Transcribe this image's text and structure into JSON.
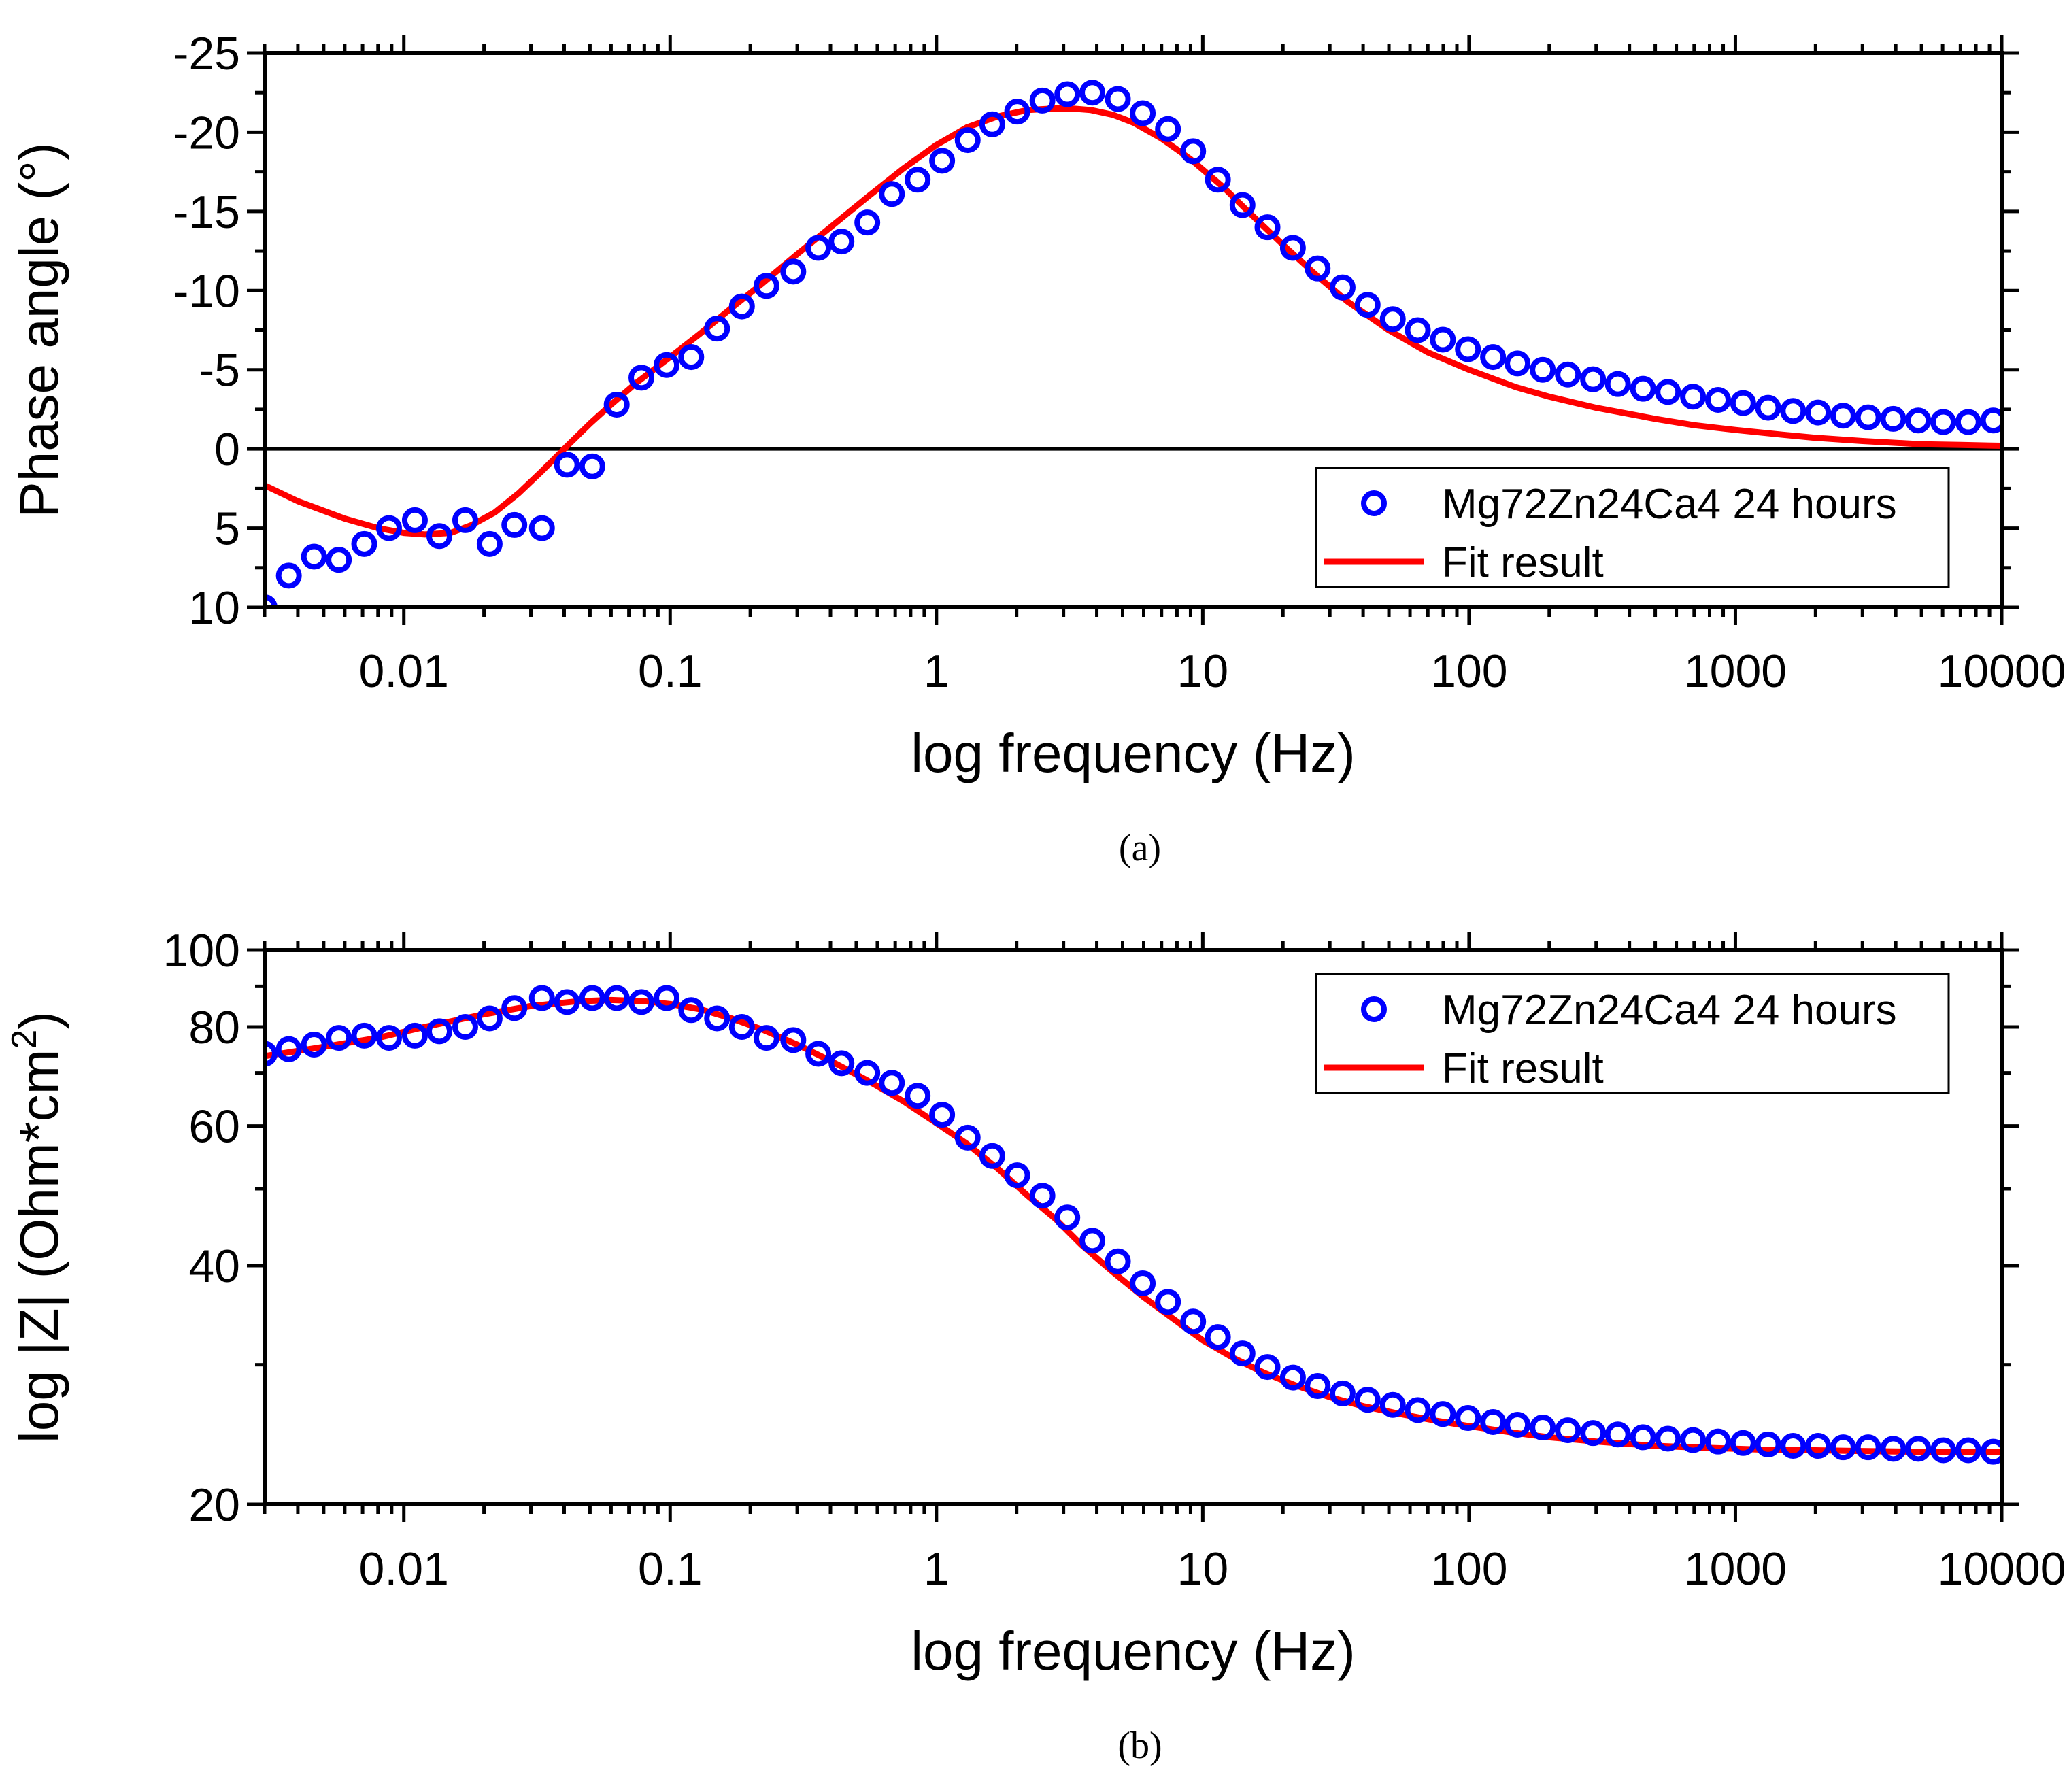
{
  "colors": {
    "points": "#0000ff",
    "fit": "#ff0000",
    "axis": "#000000"
  },
  "chart_data": [
    {
      "type": "scatter",
      "caption": "(a)",
      "xlabel": "log frequency (Hz)",
      "ylabel": "Phase angle (°)",
      "xscale": "log",
      "xlim": [
        0.003,
        10000
      ],
      "ylim": [
        10,
        -25
      ],
      "y_inverted": true,
      "zero_line": true,
      "xticks": [
        "0.01",
        "0.1",
        "1",
        "10",
        "100",
        "1000",
        "10000"
      ],
      "xtick_values": [
        0.01,
        0.1,
        1,
        10,
        100,
        1000,
        10000
      ],
      "yticks": [
        "-25",
        "-20",
        "-15",
        "-10",
        "-5",
        "0",
        "5",
        "10"
      ],
      "ytick_values": [
        -25,
        -20,
        -15,
        -10,
        -5,
        0,
        5,
        10
      ],
      "legend_position": "bottom-right",
      "series": [
        {
          "name": "Mg72Zn24Ca4 24 hours",
          "marker": "circle-open",
          "color": "#0000ff",
          "x": [
            0.003,
            0.0037,
            0.0046,
            0.0057,
            0.0071,
            0.0088,
            0.011,
            0.0136,
            0.017,
            0.021,
            0.026,
            0.033,
            0.041,
            0.051,
            0.063,
            0.078,
            0.097,
            0.12,
            0.15,
            0.186,
            0.23,
            0.29,
            0.36,
            0.44,
            0.55,
            0.68,
            0.85,
            1.05,
            1.31,
            1.62,
            2.01,
            2.5,
            3.1,
            3.85,
            4.8,
            5.95,
            7.4,
            9.2,
            11.4,
            14.1,
            17.5,
            21.8,
            27,
            33.5,
            41.6,
            51.7,
            64.2,
            79.7,
            99,
            123,
            152,
            189,
            235,
            292,
            362,
            450,
            558,
            693,
            861,
            1069,
            1327,
            1647,
            2045,
            2539,
            3152,
            3914,
            4859,
            6033,
            7490,
            9300
          ],
          "y": [
            10,
            8,
            6.8,
            7,
            6,
            5,
            4.5,
            5.5,
            4.5,
            6,
            4.8,
            5,
            1,
            1.1,
            -2.8,
            -4.5,
            -5.3,
            -5.8,
            -7.6,
            -9,
            -10.3,
            -11.2,
            -12.7,
            -13.1,
            -14.3,
            -16.1,
            -17,
            -18.2,
            -19.5,
            -20.5,
            -21.3,
            -22,
            -22.4,
            -22.5,
            -22.1,
            -21.2,
            -20.2,
            -18.8,
            -17,
            -15.4,
            -14,
            -12.7,
            -11.4,
            -10.2,
            -9.1,
            -8.2,
            -7.5,
            -6.9,
            -6.3,
            -5.8,
            -5.4,
            -5,
            -4.7,
            -4.4,
            -4.1,
            -3.8,
            -3.6,
            -3.3,
            -3.1,
            -2.9,
            -2.6,
            -2.4,
            -2.3,
            -2.1,
            -2,
            -1.9,
            -1.8,
            -1.7,
            -1.7,
            -1.8
          ]
        },
        {
          "name": "Fit result",
          "marker": "line",
          "color": "#ff0000",
          "x": [
            0.003,
            0.004,
            0.006,
            0.008,
            0.01,
            0.012,
            0.015,
            0.018,
            0.022,
            0.027,
            0.033,
            0.04,
            0.05,
            0.06,
            0.075,
            0.1,
            0.13,
            0.17,
            0.22,
            0.3,
            0.4,
            0.55,
            0.75,
            1,
            1.3,
            1.7,
            2.2,
            2.8,
            3.2,
            3.8,
            4.6,
            5.5,
            7,
            9,
            12,
            15,
            20,
            27,
            35,
            50,
            70,
            100,
            150,
            200,
            300,
            500,
            700,
            1000,
            1500,
            2000,
            3000,
            5000,
            7000,
            10000
          ],
          "y": [
            2.3,
            3.3,
            4.4,
            5.0,
            5.3,
            5.4,
            5.3,
            4.8,
            4.0,
            2.8,
            1.4,
            0,
            -1.6,
            -2.8,
            -4.2,
            -5.8,
            -7.3,
            -8.9,
            -10.4,
            -12.3,
            -14.0,
            -15.9,
            -17.7,
            -19.2,
            -20.3,
            -21.0,
            -21.4,
            -21.5,
            -21.5,
            -21.4,
            -21.1,
            -20.6,
            -19.6,
            -18.3,
            -16.5,
            -14.9,
            -12.9,
            -10.9,
            -9.3,
            -7.5,
            -6.1,
            -5.0,
            -3.9,
            -3.3,
            -2.6,
            -1.9,
            -1.5,
            -1.2,
            -0.9,
            -0.7,
            -0.5,
            -0.3,
            -0.25,
            -0.2
          ]
        }
      ]
    },
    {
      "type": "scatter",
      "caption": "(b)",
      "xlabel": "log frequency (Hz)",
      "ylabel": "log |Z| (Ohm*cm",
      "ylabel_sup": "2",
      "ylabel_close": ")",
      "xscale": "log",
      "yscale": "log",
      "xlim": [
        0.003,
        10000
      ],
      "ylim": [
        20,
        100
      ],
      "xticks": [
        "0.01",
        "0.1",
        "1",
        "10",
        "100",
        "1000",
        "10000"
      ],
      "xtick_values": [
        0.01,
        0.1,
        1,
        10,
        100,
        1000,
        10000
      ],
      "yticks": [
        "20",
        "40",
        "60",
        "80",
        "100"
      ],
      "ytick_values": [
        20,
        40,
        60,
        80,
        100
      ],
      "legend_position": "top-right",
      "series": [
        {
          "name": "Mg72Zn24Ca4 24 hours",
          "marker": "circle-open",
          "color": "#0000ff",
          "x": [
            0.003,
            0.0037,
            0.0046,
            0.0057,
            0.0071,
            0.0088,
            0.011,
            0.0136,
            0.017,
            0.021,
            0.026,
            0.033,
            0.041,
            0.051,
            0.063,
            0.078,
            0.097,
            0.12,
            0.15,
            0.186,
            0.23,
            0.29,
            0.36,
            0.44,
            0.55,
            0.68,
            0.85,
            1.05,
            1.31,
            1.62,
            2.01,
            2.5,
            3.1,
            3.85,
            4.8,
            5.95,
            7.4,
            9.2,
            11.4,
            14.1,
            17.5,
            21.8,
            27,
            33.5,
            41.6,
            51.7,
            64.2,
            79.7,
            99,
            123,
            152,
            189,
            235,
            292,
            362,
            450,
            558,
            693,
            861,
            1069,
            1327,
            1647,
            2045,
            2539,
            3152,
            3914,
            4859,
            6033,
            7490,
            9300
          ],
          "y": [
            74,
            75,
            76,
            77.5,
            78,
            77.5,
            78,
            79,
            80,
            82,
            84.5,
            87,
            86,
            87,
            87,
            86,
            87,
            84,
            82,
            80,
            77.5,
            77,
            74,
            72,
            70,
            68,
            65.5,
            62,
            58,
            55,
            52,
            49,
            46,
            43,
            40.5,
            38,
            36,
            34,
            32.5,
            31,
            29.8,
            28.9,
            28.2,
            27.6,
            27.1,
            26.7,
            26.3,
            26,
            25.7,
            25.4,
            25.2,
            25,
            24.8,
            24.6,
            24.5,
            24.3,
            24.2,
            24.1,
            24,
            23.9,
            23.8,
            23.7,
            23.7,
            23.6,
            23.6,
            23.5,
            23.5,
            23.4,
            23.4,
            23.3
          ]
        },
        {
          "name": "Fit result",
          "marker": "line",
          "color": "#ff0000",
          "x": [
            0.003,
            0.005,
            0.008,
            0.012,
            0.02,
            0.03,
            0.045,
            0.06,
            0.08,
            0.1,
            0.13,
            0.17,
            0.22,
            0.3,
            0.4,
            0.55,
            0.75,
            1,
            1.3,
            1.7,
            2.2,
            2.8,
            3.5,
            4.5,
            6,
            8,
            10,
            13,
            17,
            22,
            30,
            40,
            55,
            75,
            100,
            150,
            200,
            300,
            500,
            700,
            1000,
            1500,
            2000,
            3000,
            5000,
            7000,
            10000
          ],
          "y": [
            73.5,
            75.5,
            77.5,
            80,
            83,
            85,
            86.2,
            86.5,
            86.2,
            85.5,
            84.2,
            82,
            79.5,
            76,
            72.5,
            68.5,
            64.5,
            60.5,
            57,
            53,
            49,
            45.8,
            42.5,
            39.5,
            36.5,
            34,
            32.2,
            30.6,
            29.3,
            28.3,
            27.3,
            26.6,
            26,
            25.5,
            25.1,
            24.6,
            24.3,
            24,
            23.7,
            23.6,
            23.5,
            23.4,
            23.4,
            23.35,
            23.3,
            23.3,
            23.3
          ]
        }
      ]
    }
  ]
}
